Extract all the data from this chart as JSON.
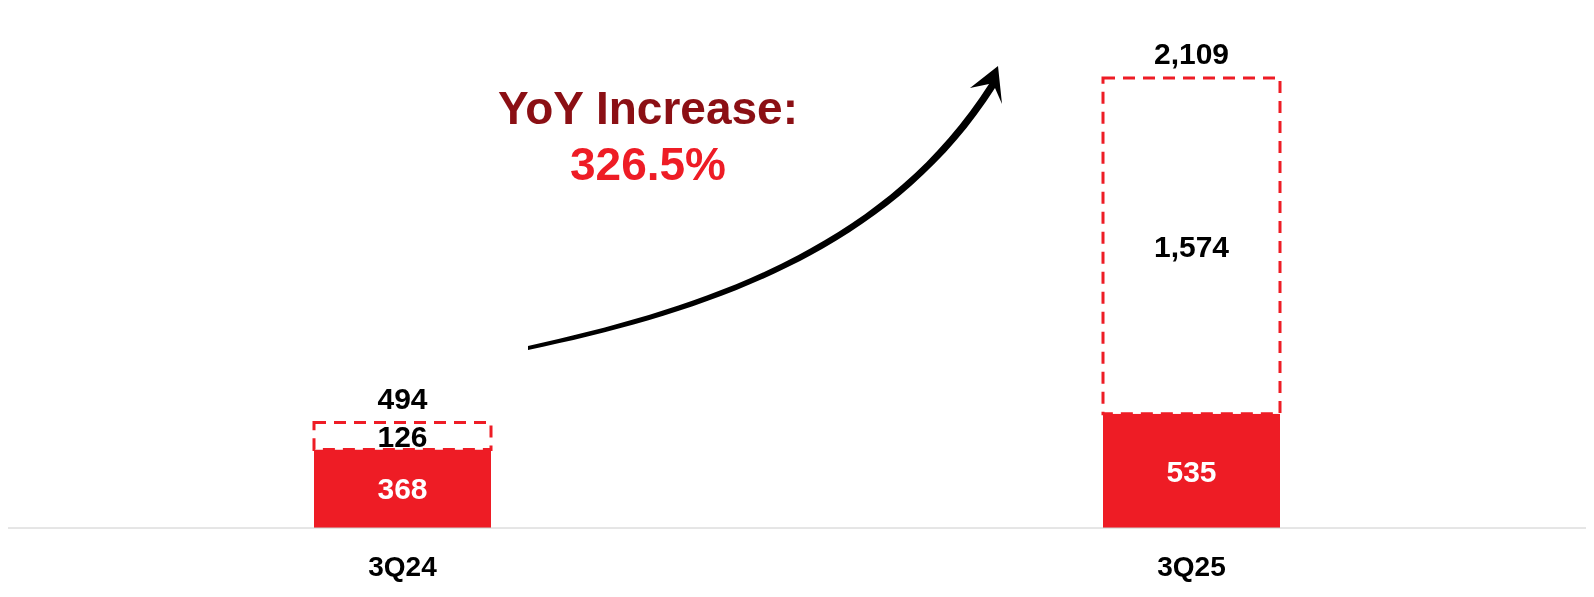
{
  "chart_data": {
    "type": "bar",
    "stacked": true,
    "categories": [
      "3Q24",
      "3Q25"
    ],
    "series": [
      {
        "color": "#ee1c25",
        "values": [
          368,
          535
        ],
        "value_labels": [
          "368",
          "535"
        ]
      },
      {
        "color": "#ee1c25",
        "line_style": "dashed",
        "values": [
          126,
          1574
        ],
        "value_labels": [
          "126",
          "1,574"
        ]
      }
    ],
    "totals": [
      "494",
      "2,109"
    ],
    "annotations": [
      "YoY Increase:",
      "326.5%"
    ]
  }
}
